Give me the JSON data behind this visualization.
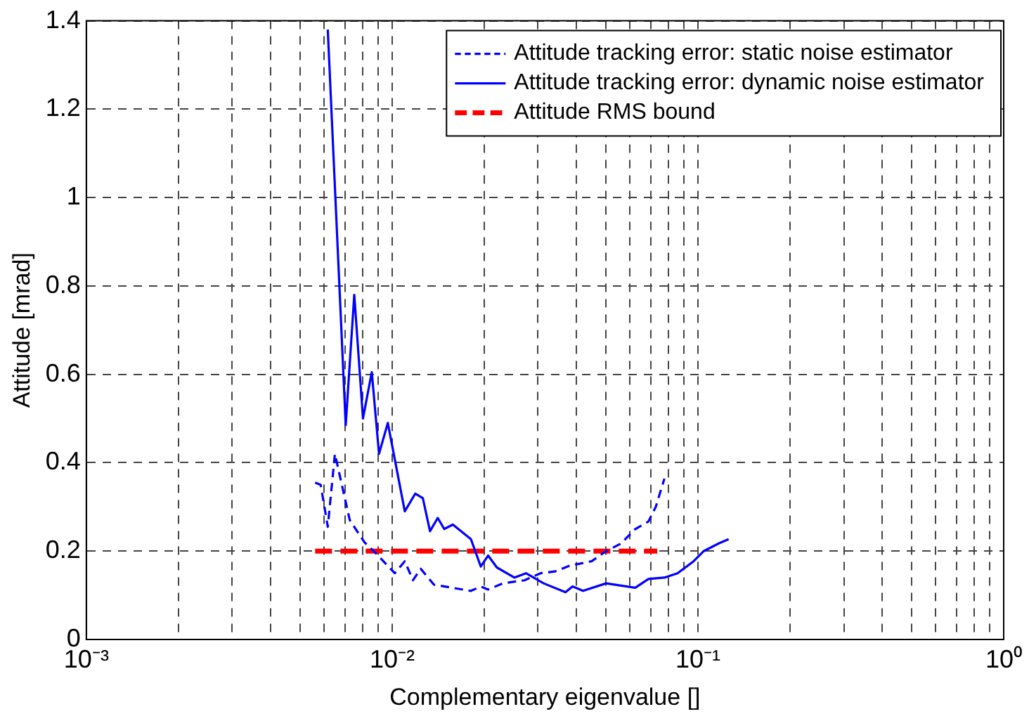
{
  "chart_data": {
    "type": "line",
    "xlabel": "Complementary eigenvalue []",
    "ylabel": "Attitude [mrad]",
    "log": "x",
    "grid": true,
    "legend": "top right",
    "marker": "none",
    "xlim": [
      0.001,
      1
    ],
    "ylim": [
      0,
      1.4
    ],
    "xticks": [
      {
        "value": 0.001,
        "label": "10⁻³"
      },
      {
        "value": 0.002,
        "label": null
      },
      {
        "value": 0.003,
        "label": null
      },
      {
        "value": 0.004,
        "label": null
      },
      {
        "value": 0.005,
        "label": null
      },
      {
        "value": 0.006,
        "label": null
      },
      {
        "value": 0.007,
        "label": null
      },
      {
        "value": 0.008,
        "label": null
      },
      {
        "value": 0.009,
        "label": null
      },
      {
        "value": 0.01,
        "label": "10⁻²"
      },
      {
        "value": 0.02,
        "label": null
      },
      {
        "value": 0.03,
        "label": null
      },
      {
        "value": 0.04,
        "label": null
      },
      {
        "value": 0.05,
        "label": null
      },
      {
        "value": 0.06,
        "label": null
      },
      {
        "value": 0.07,
        "label": null
      },
      {
        "value": 0.08,
        "label": null
      },
      {
        "value": 0.09,
        "label": null
      },
      {
        "value": 0.1,
        "label": "10⁻¹"
      },
      {
        "value": 0.2,
        "label": null
      },
      {
        "value": 0.3,
        "label": null
      },
      {
        "value": 0.4,
        "label": null
      },
      {
        "value": 0.5,
        "label": null
      },
      {
        "value": 0.6,
        "label": null
      },
      {
        "value": 0.7,
        "label": null
      },
      {
        "value": 0.8,
        "label": null
      },
      {
        "value": 0.9,
        "label": null
      },
      {
        "value": 1,
        "label": "10⁰"
      }
    ],
    "yticks": [
      0,
      0.2,
      0.4,
      0.6,
      0.8,
      1,
      1.2,
      1.4
    ],
    "series": [
      {
        "name": "Attitude tracking error: static noise estimator",
        "color": "#0000ff",
        "line_style": "dashed",
        "x": [
          0.0056,
          0.00584,
          0.00616,
          0.0065,
          0.00727,
          0.00812,
          0.00885,
          0.0102,
          0.011,
          0.0117,
          0.0124,
          0.0137,
          0.0157,
          0.0181,
          0.0195,
          0.0206,
          0.023,
          0.0271,
          0.0306,
          0.0341,
          0.0381,
          0.0449,
          0.0501,
          0.056,
          0.0624,
          0.0689,
          0.0728,
          0.0777
        ],
        "values": [
          0.355,
          0.35,
          0.255,
          0.42,
          0.27,
          0.22,
          0.195,
          0.15,
          0.177,
          0.134,
          0.16,
          0.124,
          0.117,
          0.11,
          0.12,
          0.113,
          0.127,
          0.134,
          0.15,
          0.154,
          0.167,
          0.177,
          0.2,
          0.217,
          0.25,
          0.267,
          0.3,
          0.364
        ]
      },
      {
        "name": "Attitude tracking error: dynamic noise estimator",
        "color": "#0000ff",
        "line_style": "solid",
        "x": [
          0.00616,
          0.00705,
          0.00752,
          0.00803,
          0.00858,
          0.00906,
          0.00968,
          0.011,
          0.0119,
          0.0126,
          0.0133,
          0.0141,
          0.0148,
          0.0158,
          0.0181,
          0.0195,
          0.0206,
          0.022,
          0.0251,
          0.0274,
          0.0313,
          0.0369,
          0.0389,
          0.0421,
          0.0501,
          0.0624,
          0.0689,
          0.0777,
          0.0858,
          0.0968,
          0.1045,
          0.1167,
          0.126
        ],
        "values": [
          1.38,
          0.485,
          0.78,
          0.5,
          0.605,
          0.42,
          0.49,
          0.29,
          0.33,
          0.32,
          0.245,
          0.275,
          0.25,
          0.26,
          0.227,
          0.165,
          0.19,
          0.163,
          0.14,
          0.15,
          0.127,
          0.107,
          0.12,
          0.11,
          0.127,
          0.117,
          0.137,
          0.14,
          0.15,
          0.177,
          0.2,
          0.217,
          0.227
        ]
      },
      {
        "name": "Attitude RMS bound",
        "color": "#ff0000",
        "line_style": "dashed",
        "x": [
          0.0056,
          0.0736
        ],
        "values": [
          0.2,
          0.2
        ]
      }
    ]
  }
}
